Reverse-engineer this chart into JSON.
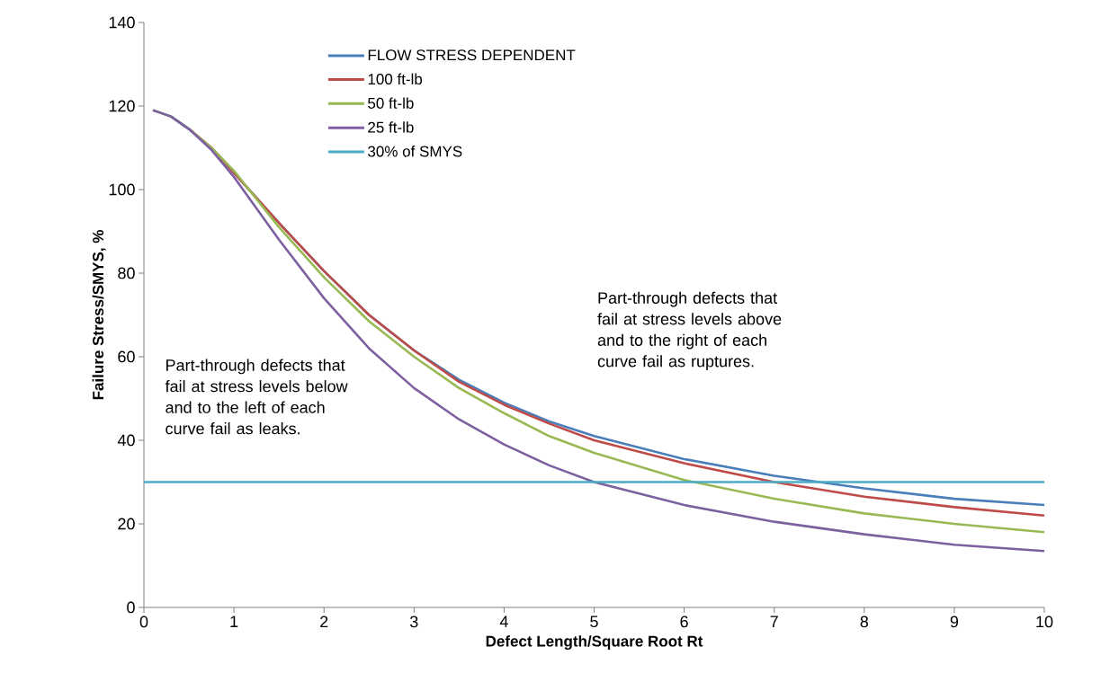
{
  "chart_data": {
    "type": "line",
    "xlabel": "Defect Length/Square Root Rt",
    "ylabel": "Failure Stress/SMYS, %",
    "xlim": [
      0,
      10
    ],
    "ylim": [
      0,
      140
    ],
    "xticks": [
      0,
      1,
      2,
      3,
      4,
      5,
      6,
      7,
      8,
      9,
      10
    ],
    "yticks": [
      0,
      20,
      40,
      60,
      80,
      100,
      120,
      140
    ],
    "grid": false,
    "legend": "top left",
    "marker": "none",
    "line_style": "solid",
    "annotations": [
      "Part-through defects that fail at stress levels below and to the left of each curve fail as leaks.",
      "Part-through defects that fail at stress levels above and to the right of each curve fail as ruptures."
    ],
    "series": [
      {
        "name": "FLOW STRESS DEPENDENT",
        "color": "#4a7ebb",
        "x": [
          0.1,
          0.3,
          0.5,
          0.75,
          1,
          1.5,
          2,
          2.5,
          3,
          3.5,
          4,
          4.5,
          5,
          6,
          7,
          8,
          9,
          10
        ],
        "values": [
          119,
          117.5,
          114.5,
          110,
          104,
          92,
          80.5,
          70,
          61.5,
          54.5,
          49,
          44.5,
          41,
          35.5,
          31.5,
          28.5,
          26,
          24.5
        ]
      },
      {
        "name": "100 ft-lb",
        "color": "#be4b48",
        "x": [
          0.5,
          0.75,
          1,
          1.5,
          2,
          2.5,
          3,
          3.5,
          4,
          4.5,
          5,
          6,
          7,
          8,
          9,
          10
        ],
        "values": [
          114.5,
          110,
          104,
          92,
          80.5,
          70,
          61.5,
          54,
          48.5,
          44,
          40,
          34.5,
          30,
          26.5,
          24,
          22
        ]
      },
      {
        "name": "50 ft-lb",
        "color": "#98b954",
        "x": [
          0.1,
          0.3,
          0.5,
          0.75,
          1,
          1.5,
          2,
          2.5,
          3,
          3.5,
          4,
          4.5,
          5,
          6,
          7,
          8,
          9,
          10
        ],
        "values": [
          119,
          117.5,
          114.5,
          110,
          104.5,
          91,
          79,
          68.5,
          60,
          52.5,
          46.5,
          41,
          37,
          30.5,
          26,
          22.5,
          20,
          18
        ]
      },
      {
        "name": "25 ft-lb",
        "color": "#7d60a0",
        "x": [
          0.1,
          0.3,
          0.5,
          0.75,
          1,
          1.5,
          2,
          2.5,
          3,
          3.5,
          4,
          4.5,
          5,
          6,
          7,
          8,
          9,
          10
        ],
        "values": [
          119,
          117.5,
          114.5,
          109.5,
          103,
          88,
          74,
          62,
          52.5,
          45,
          39,
          34,
          30,
          24.5,
          20.5,
          17.5,
          15,
          13.5
        ]
      },
      {
        "name": "30% of SMYS",
        "color": "#4bacc6",
        "x": [
          0,
          10
        ],
        "values": [
          30,
          30
        ]
      }
    ]
  }
}
